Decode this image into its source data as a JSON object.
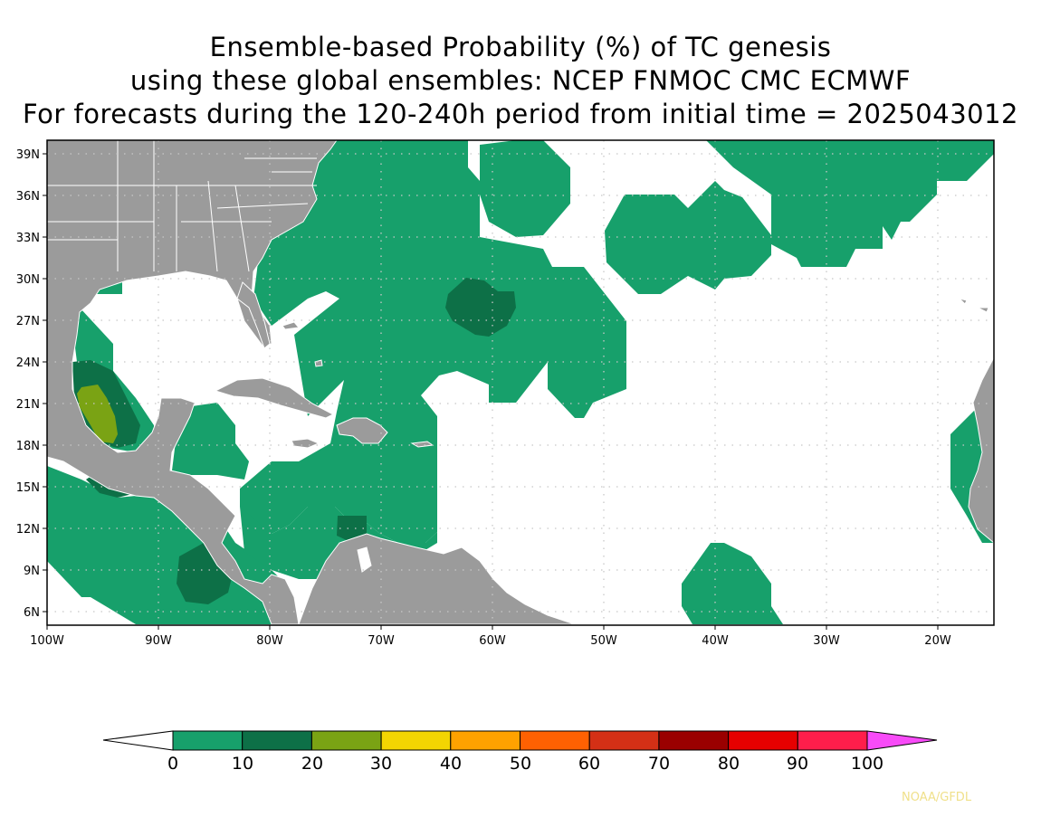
{
  "title": {
    "line1": "Ensemble-based Probability (%) of TC genesis",
    "line2": "using these global ensembles:   NCEP FNMOC CMC ECMWF",
    "line3": "For forecasts during the 120-240h period from initial time = 2025043012"
  },
  "map": {
    "lat_labels": [
      "39N",
      "36N",
      "33N",
      "30N",
      "27N",
      "24N",
      "21N",
      "18N",
      "15N",
      "12N",
      "9N",
      "6N"
    ],
    "lon_labels": [
      "100W",
      "90W",
      "80W",
      "70W",
      "60W",
      "50W",
      "40W",
      "30W",
      "20W"
    ],
    "extent": {
      "lon_min": -100,
      "lon_max": -15,
      "lat_min": 5,
      "lat_max": 40
    },
    "colors": {
      "land": "#9b9b9b",
      "ocean": "#ffffff",
      "border": "#ffffff",
      "grid": "#c8c8c8"
    }
  },
  "colorbar": {
    "labels": [
      "0",
      "10",
      "20",
      "30",
      "40",
      "50",
      "60",
      "70",
      "80",
      "90",
      "100"
    ],
    "colors": [
      "#17a06b",
      "#0d7047",
      "#7aa314",
      "#f3d502",
      "#ffa200",
      "#ff6102",
      "#d43016",
      "#9a0000",
      "#e60000",
      "#ff1e4b",
      "#f84bf8"
    ],
    "below_color": "#ffffff"
  },
  "credit": "NOAA/GFDL"
}
